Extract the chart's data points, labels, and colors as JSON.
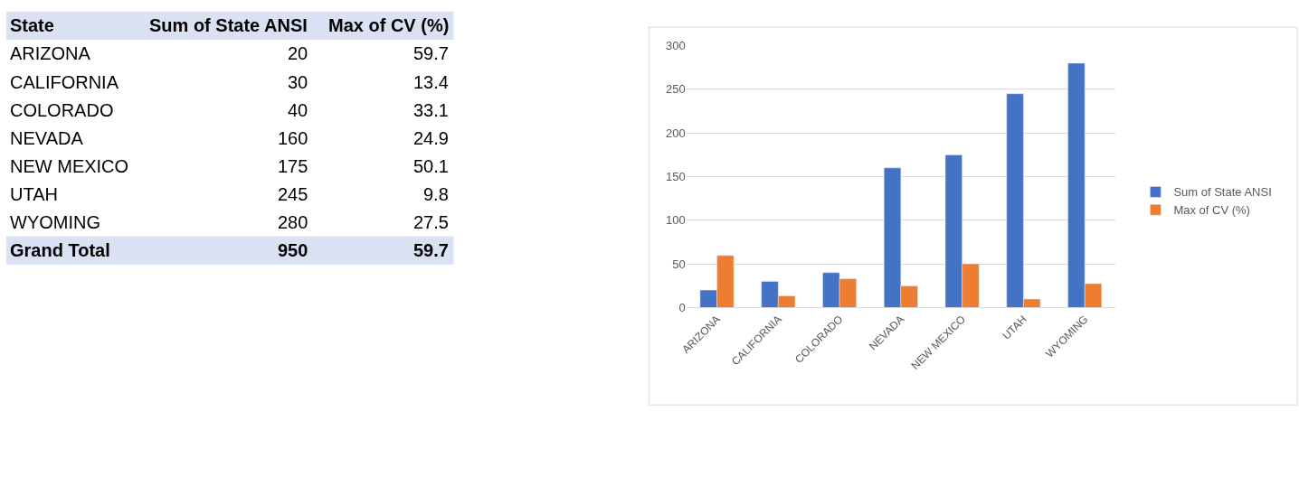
{
  "chart_data": [
    {
      "type": "other",
      "annotations": [
        "State",
        "Sum of State ANSI",
        "Max of CV (%)",
        "ARIZONA",
        "20",
        "59.7",
        "CALIFORNIA",
        "30",
        "13.4",
        "COLORADO",
        "40",
        "33.1",
        "NEVADA",
        "160",
        "24.9",
        "NEW MEXICO",
        "175",
        "50.1",
        "UTAH",
        "245",
        "9.8",
        "WYOMING",
        "280",
        "27.5",
        "Grand Total",
        "950",
        "59.7"
      ]
    },
    {
      "type": "bar",
      "categories": [
        "ARIZONA",
        "CALIFORNIA",
        "COLORADO",
        "NEVADA",
        "NEW MEXICO",
        "UTAH",
        "WYOMING"
      ],
      "series": [
        {
          "name": "Sum of State ANSI",
          "color": "#4472c4",
          "values": [
            20,
            30,
            40,
            160,
            175,
            245,
            280
          ]
        },
        {
          "name": "Max of CV (%)",
          "color": "#ed7d31",
          "values": [
            59.7,
            13.4,
            33.1,
            24.9,
            50.1,
            9.8,
            27.5
          ]
        }
      ],
      "ylim": [
        0,
        300
      ],
      "yticks": [
        0,
        50,
        100,
        150,
        200,
        250,
        300
      ],
      "grid": "y",
      "legend": "right"
    }
  ]
}
